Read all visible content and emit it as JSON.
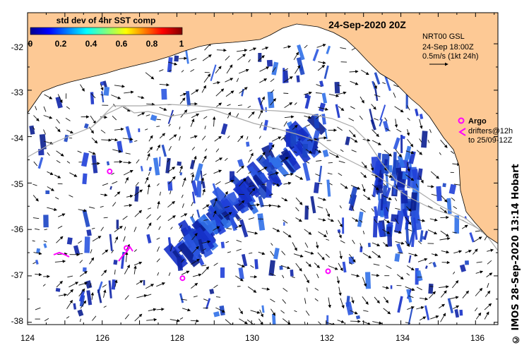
{
  "title": "24-Sep-2020 20Z",
  "colorbar": {
    "label": "std dev of 4hr SST comp",
    "ticks": [
      "0",
      "0.2",
      "0.4",
      "0.6",
      "0.8",
      "1"
    ]
  },
  "product": {
    "line1": "NRT00 GSL",
    "line2": "24-Sep 18:00Z",
    "line3": "0.5m/s (1kt 24h)"
  },
  "legend": {
    "argo": "Argo",
    "drifters_line1": "drifters@12h",
    "drifters_line2": "to 25/09-12Z"
  },
  "credit": "© IMOS 28-Sep-2020 13:14 Hobart",
  "axes": {
    "lon_ticks": [
      "124",
      "126",
      "128",
      "130",
      "132",
      "134",
      "136"
    ],
    "lat_ticks": [
      "-32",
      "-33",
      "-34",
      "-35",
      "-36",
      "-37",
      "-38"
    ]
  },
  "colors": {
    "land": "#fdc995",
    "ocean": "#ffffff",
    "argo": "#ff00ff",
    "track": "#a9a9a9"
  },
  "argo_floats": [
    {
      "lon": 126.2,
      "lat": -34.75
    },
    {
      "lon": 128.15,
      "lat": -37.05
    },
    {
      "lon": 132.05,
      "lat": -36.9
    },
    {
      "lon": 126.65,
      "lat": -36.4
    }
  ]
}
